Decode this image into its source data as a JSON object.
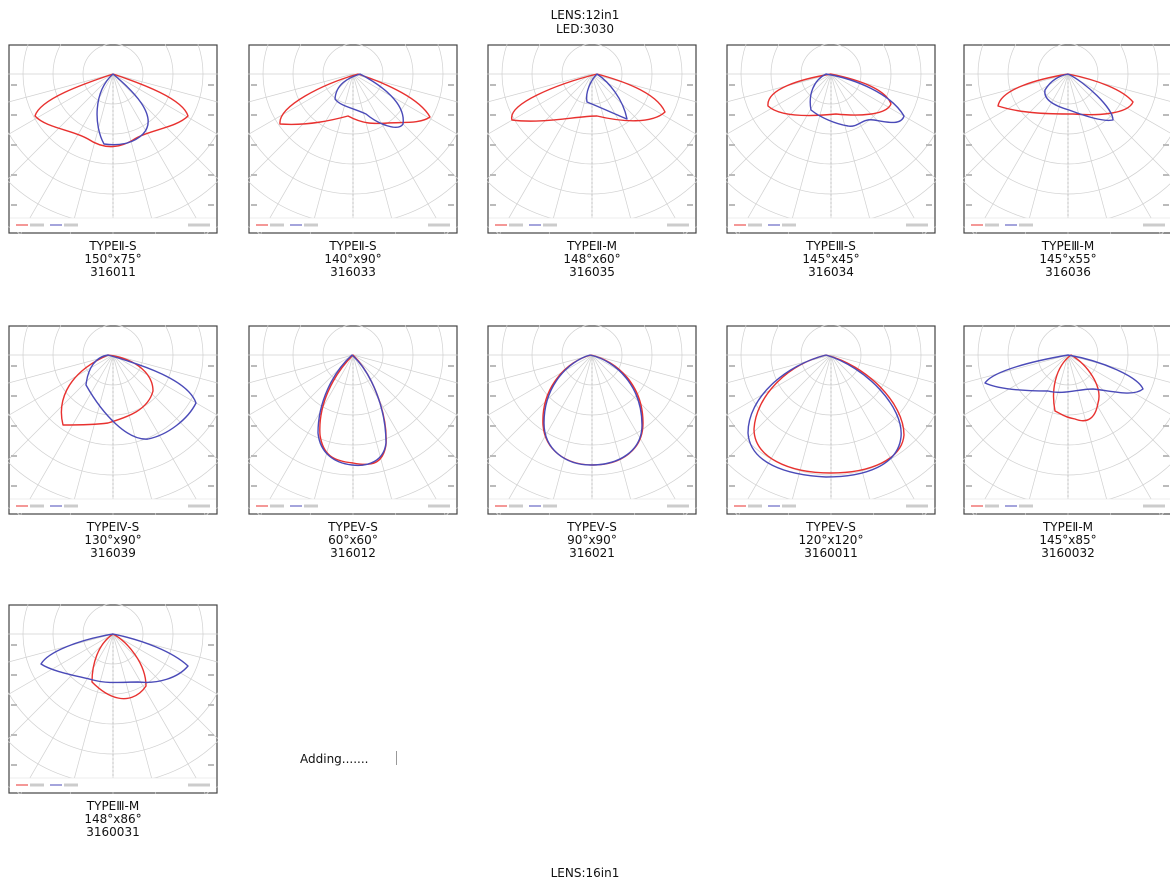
{
  "header": {
    "line1": "LENS:12in1",
    "line2": "LED:3030"
  },
  "colors": {
    "c0": "#e8312f",
    "c90": "#4a4ab8",
    "grid": "#d0d0d0",
    "frame": "#444444"
  },
  "panels": [
    {
      "type": "TYPEⅡ-S",
      "angle": "150°x75°",
      "code": "316011",
      "shape": "t2s_150_75"
    },
    {
      "type": "TYPEⅡ-S",
      "angle": "140°x90°",
      "code": "316033",
      "shape": "t2s_140_90"
    },
    {
      "type": "TYPEⅡ-M",
      "angle": "148°x60°",
      "code": "316035",
      "shape": "t2m_148_60"
    },
    {
      "type": "TYPEⅢ-S",
      "angle": "145°x45°",
      "code": "316034",
      "shape": "t3s_145_45"
    },
    {
      "type": "TYPEⅢ-M",
      "angle": "145°x55°",
      "code": "316036",
      "shape": "t3m_145_55"
    },
    {
      "type": "TYPEⅣ-S",
      "angle": "130°x90°",
      "code": "316039",
      "shape": "t4s_130_90"
    },
    {
      "type": "TYPEⅤ-S",
      "angle": "60°x60°",
      "code": "316012",
      "shape": "t5s_60"
    },
    {
      "type": "TYPEⅤ-S",
      "angle": "90°x90°",
      "code": "316021",
      "shape": "t5s_90"
    },
    {
      "type": "TYPEⅤ-S",
      "angle": "120°x120°",
      "code": "3160011",
      "shape": "t5s_120"
    },
    {
      "type": "TYPEⅡ-M",
      "angle": "145°x85°",
      "code": "3160032",
      "shape": "t2m_145_85"
    },
    {
      "type": "TYPEⅢ-M",
      "angle": "148°x86°",
      "code": "3160031",
      "shape": "t3m_148_86"
    }
  ],
  "adding": "Adding.......",
  "footer": "LENS:16in1"
}
